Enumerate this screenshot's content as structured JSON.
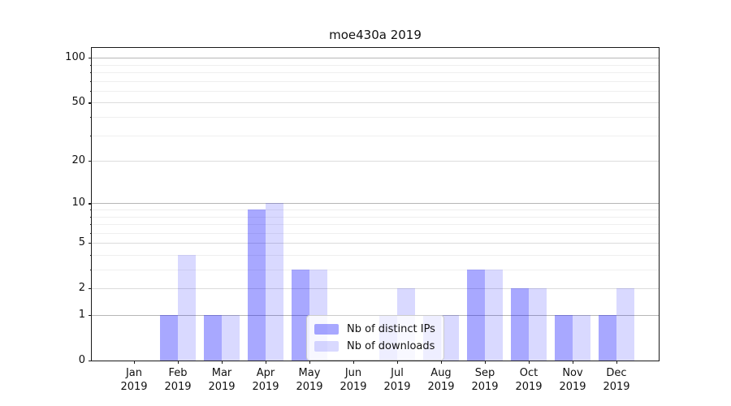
{
  "figure": {
    "background": "#ffffff",
    "title": "moe430a 2019"
  },
  "colors": {
    "bar_distinct_ips": "rgba(0,0,255,0.34)",
    "bar_downloads": "rgba(0,0,255,0.15)",
    "grid_power10": "#b7b7b7",
    "grid_major": "#dcdcdc",
    "grid_minor": "#efefef",
    "spine": "#1a1a1a",
    "text": "#111111",
    "legend_border": "#cccccc",
    "legend_bg": "rgba(255,255,255,0.8)"
  },
  "chart_data": {
    "type": "bar",
    "title": "moe430a 2019",
    "xlabel": "",
    "ylabel": "",
    "categories": [
      "Jan",
      "Feb",
      "Mar",
      "Apr",
      "May",
      "Jun",
      "Jul",
      "Aug",
      "Sep",
      "Oct",
      "Nov",
      "Dec"
    ],
    "x_tick_second_line": "2019",
    "series": [
      {
        "name": "Nb of distinct IPs",
        "color": "rgba(0,0,255,0.34)",
        "values": [
          0,
          1,
          1,
          9,
          3,
          0,
          1,
          1,
          3,
          2,
          1,
          1
        ]
      },
      {
        "name": "Nb of downloads",
        "color": "rgba(0,0,255,0.15)",
        "values": [
          0,
          4,
          1,
          10,
          3,
          0,
          2,
          1,
          3,
          2,
          1,
          2
        ]
      }
    ],
    "yscale": "log1p",
    "ylim": [
      0,
      116.5
    ],
    "y_ticks": [
      0,
      1,
      2,
      5,
      10,
      20,
      50,
      100
    ],
    "y_minor_ticks": [
      3,
      4,
      6,
      7,
      8,
      9,
      30,
      40,
      60,
      70,
      80,
      90
    ],
    "grid": "both",
    "legend_position": "lower center"
  }
}
